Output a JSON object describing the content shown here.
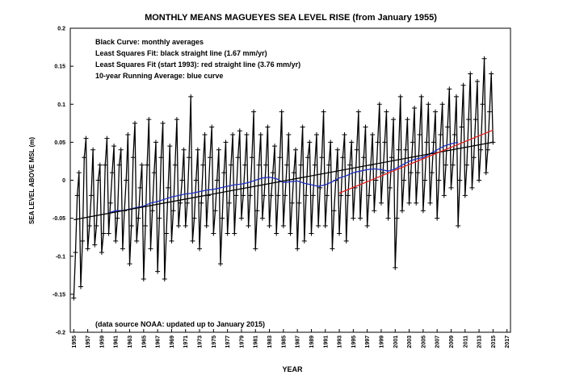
{
  "chart_data": {
    "type": "line",
    "title": "MONTHLY MEANS MAGUEYES SEA LEVEL RISE (from January 1955)",
    "y_label": "SEA LEVEL ABOVE MSL (m)",
    "x_label": "YEAR",
    "annotations": [
      "Black Curve: monthly averages",
      "Least Squares Fit: black straight line (1.67 mm/yr)",
      "Least Squares Fit (start 1993): red straight line (3.76 mm/yr)",
      "10-year Running Average: blue curve",
      "(data source NOAA: updated up to January 2015)"
    ],
    "xlim": [
      1954.5,
      2017.5
    ],
    "ylim": [
      -0.2,
      0.2
    ],
    "yticks": [
      -0.2,
      -0.15,
      -0.1,
      -0.05,
      0,
      0.05,
      0.1,
      0.15,
      0.2
    ],
    "xticks": [
      1955,
      1957,
      1959,
      1961,
      1963,
      1965,
      1967,
      1969,
      1971,
      1973,
      1975,
      1977,
      1979,
      1981,
      1983,
      1985,
      1987,
      1989,
      1991,
      1993,
      1995,
      1997,
      1999,
      2001,
      2003,
      2005,
      2007,
      2009,
      2011,
      2013,
      2015,
      2017
    ],
    "series": [
      {
        "color": "#000000",
        "marker": "+",
        "x": [
          1955,
          1955.25,
          1955.5,
          1955.75,
          1956,
          1956.25,
          1956.5,
          1956.75,
          1957,
          1957.25,
          1957.5,
          1957.75,
          1958,
          1958.25,
          1958.5,
          1958.75,
          1959,
          1959.25,
          1959.5,
          1959.75,
          1960,
          1960.25,
          1960.5,
          1960.75,
          1961,
          1961.25,
          1961.5,
          1961.75,
          1962,
          1962.25,
          1962.5,
          1962.75,
          1963,
          1963.25,
          1963.5,
          1963.75,
          1964,
          1964.25,
          1964.5,
          1964.75,
          1965,
          1965.25,
          1965.5,
          1965.75,
          1966,
          1966.25,
          1966.5,
          1966.75,
          1967,
          1967.25,
          1967.5,
          1967.75,
          1968,
          1968.25,
          1968.5,
          1968.75,
          1969,
          1969.25,
          1969.5,
          1969.75,
          1970,
          1970.25,
          1970.5,
          1970.75,
          1971,
          1971.25,
          1971.5,
          1971.75,
          1972,
          1972.25,
          1972.5,
          1972.75,
          1973,
          1973.25,
          1973.5,
          1973.75,
          1974,
          1974.25,
          1974.5,
          1974.75,
          1975,
          1975.25,
          1975.5,
          1975.75,
          1976,
          1976.25,
          1976.5,
          1976.75,
          1977,
          1977.25,
          1977.5,
          1977.75,
          1978,
          1978.25,
          1978.5,
          1978.75,
          1979,
          1979.25,
          1979.5,
          1979.75,
          1980,
          1980.25,
          1980.5,
          1980.75,
          1981,
          1981.25,
          1981.5,
          1981.75,
          1982,
          1982.25,
          1982.5,
          1982.75,
          1983,
          1983.25,
          1983.5,
          1983.75,
          1984,
          1984.25,
          1984.5,
          1984.75,
          1985,
          1985.25,
          1985.5,
          1985.75,
          1986,
          1986.25,
          1986.5,
          1986.75,
          1987,
          1987.25,
          1987.5,
          1987.75,
          1988,
          1988.25,
          1988.5,
          1988.75,
          1989,
          1989.25,
          1989.5,
          1989.75,
          1990,
          1990.25,
          1990.5,
          1990.75,
          1991,
          1991.25,
          1991.5,
          1991.75,
          1992,
          1992.25,
          1992.5,
          1992.75,
          1993,
          1993.25,
          1993.5,
          1993.75,
          1994,
          1994.25,
          1994.5,
          1994.75,
          1995,
          1995.25,
          1995.5,
          1995.75,
          1996,
          1996.25,
          1996.5,
          1996.75,
          1997,
          1997.25,
          1997.5,
          1997.75,
          1998,
          1998.25,
          1998.5,
          1998.75,
          1999,
          1999.25,
          1999.5,
          1999.75,
          2000,
          2000.25,
          2000.5,
          2000.75,
          2001,
          2001.25,
          2001.5,
          2001.75,
          2002,
          2002.25,
          2002.5,
          2002.75,
          2003,
          2003.25,
          2003.5,
          2003.75,
          2004,
          2004.25,
          2004.5,
          2004.75,
          2005,
          2005.25,
          2005.5,
          2005.75,
          2006,
          2006.25,
          2006.5,
          2006.75,
          2007,
          2007.25,
          2007.5,
          2007.75,
          2008,
          2008.25,
          2008.5,
          2008.75,
          2009,
          2009.25,
          2009.5,
          2009.75,
          2010,
          2010.25,
          2010.5,
          2010.75,
          2011,
          2011.25,
          2011.5,
          2011.75,
          2012,
          2012.25,
          2012.5,
          2012.75,
          2013,
          2013.25,
          2013.5,
          2013.75,
          2014,
          2014.25,
          2014.5,
          2014.75,
          2015
        ],
        "values": [
          -0.155,
          -0.095,
          -0.02,
          0.01,
          -0.14,
          -0.08,
          0.03,
          0.055,
          -0.09,
          -0.06,
          -0.02,
          0.04,
          -0.085,
          -0.06,
          0,
          0.02,
          -0.095,
          -0.07,
          0.02,
          0.055,
          -0.07,
          -0.03,
          0.01,
          0.045,
          -0.08,
          -0.05,
          0.02,
          0.04,
          -0.09,
          -0.04,
          0,
          0.06,
          -0.11,
          -0.06,
          0.03,
          0.075,
          -0.08,
          -0.05,
          -0.01,
          0.02,
          -0.13,
          -0.06,
          0.02,
          0.08,
          -0.09,
          -0.04,
          0.01,
          0.05,
          -0.12,
          -0.05,
          0.03,
          0.075,
          -0.13,
          -0.07,
          -0.01,
          0.045,
          -0.08,
          -0.04,
          0.02,
          0.08,
          -0.06,
          -0.03,
          0,
          0.04,
          -0.06,
          -0.03,
          0.03,
          0.11,
          -0.08,
          -0.05,
          0,
          0.04,
          -0.09,
          -0.03,
          0.02,
          0.06,
          -0.06,
          -0.02,
          0.03,
          0.07,
          -0.07,
          -0.04,
          0,
          0.04,
          -0.11,
          -0.05,
          0.01,
          0.05,
          -0.07,
          -0.03,
          0.02,
          0.06,
          -0.07,
          -0.02,
          0.03,
          0.065,
          -0.05,
          -0.02,
          0.02,
          0.06,
          -0.06,
          -0.02,
          0.03,
          0.09,
          -0.09,
          -0.04,
          0.02,
          0.06,
          -0.05,
          -0.02,
          0.02,
          0.07,
          -0.06,
          -0.02,
          0.01,
          0.045,
          -0.07,
          -0.02,
          0.03,
          0.09,
          -0.06,
          -0.02,
          0.02,
          0.06,
          -0.07,
          -0.03,
          0.01,
          0.04,
          -0.09,
          -0.03,
          0.02,
          0.07,
          -0.08,
          -0.02,
          0.03,
          0.05,
          -0.07,
          -0.02,
          0.02,
          0.06,
          -0.06,
          -0.01,
          0.03,
          0.09,
          -0.06,
          -0.02,
          0.02,
          0.05,
          -0.09,
          -0.04,
          0,
          0.04,
          -0.07,
          -0.02,
          0.03,
          0.06,
          -0.08,
          -0.02,
          0.02,
          0.05,
          -0.05,
          -0.01,
          0.04,
          0.09,
          -0.05,
          0,
          0.03,
          0.07,
          -0.06,
          -0.02,
          0.02,
          0.06,
          -0.04,
          0,
          0.05,
          0.1,
          -0.03,
          0.01,
          0.05,
          0.09,
          -0.05,
          -0.01,
          0.03,
          0.08,
          -0.115,
          -0.05,
          0.04,
          0.11,
          -0.04,
          0,
          0.04,
          0.08,
          -0.03,
          0.01,
          0.05,
          0.095,
          -0.03,
          0.01,
          0.06,
          0.11,
          -0.04,
          0,
          0.05,
          0.1,
          -0.03,
          0.01,
          0.05,
          0.09,
          -0.05,
          0,
          0.06,
          0.1,
          -0.02,
          0.02,
          0.07,
          0.12,
          -0.01,
          0.02,
          0.06,
          0.11,
          -0.06,
          0,
          0.07,
          0.125,
          -0.02,
          0.02,
          0.08,
          0.14,
          -0.01,
          0.03,
          0.08,
          0.13,
          0,
          0.04,
          0.1,
          0.16,
          0.01,
          0.04,
          0.09,
          0.14,
          0.05
        ]
      },
      {
        "color": "#1f2fbf",
        "x": [
          1960,
          1961,
          1962,
          1963,
          1964,
          1965,
          1966,
          1967,
          1968,
          1969,
          1970,
          1971,
          1972,
          1973,
          1974,
          1975,
          1976,
          1977,
          1978,
          1979,
          1980,
          1981,
          1982,
          1983,
          1984,
          1985,
          1986,
          1987,
          1988,
          1989,
          1990,
          1991,
          1992,
          1993,
          1994,
          1995,
          1996,
          1997,
          1998,
          1999,
          2000,
          2001,
          2002,
          2003,
          2004,
          2005,
          2006,
          2007,
          2008,
          2009,
          2010
        ],
        "values": [
          -0.043,
          -0.04,
          -0.04,
          -0.038,
          -0.036,
          -0.034,
          -0.03,
          -0.028,
          -0.025,
          -0.022,
          -0.02,
          -0.018,
          -0.017,
          -0.015,
          -0.013,
          -0.012,
          -0.01,
          -0.008,
          -0.006,
          -0.005,
          -0.003,
          0,
          0.003,
          0.004,
          0.002,
          -0.003,
          -0.002,
          -0.001,
          -0.004,
          -0.006,
          -0.008,
          -0.006,
          -0.002,
          0.003,
          0.006,
          0.01,
          0.012,
          0.014,
          0.015,
          0.014,
          0.012,
          0.015,
          0.02,
          0.025,
          0.028,
          0.03,
          0.035,
          0.04,
          0.045,
          0.048,
          0.05
        ]
      },
      {
        "color": "#000000",
        "x": [
          1955,
          2015
        ],
        "values": [
          -0.052,
          0.05
        ]
      },
      {
        "color": "#e02020",
        "x": [
          1993,
          2015
        ],
        "values": [
          -0.017,
          0.066
        ]
      }
    ]
  }
}
